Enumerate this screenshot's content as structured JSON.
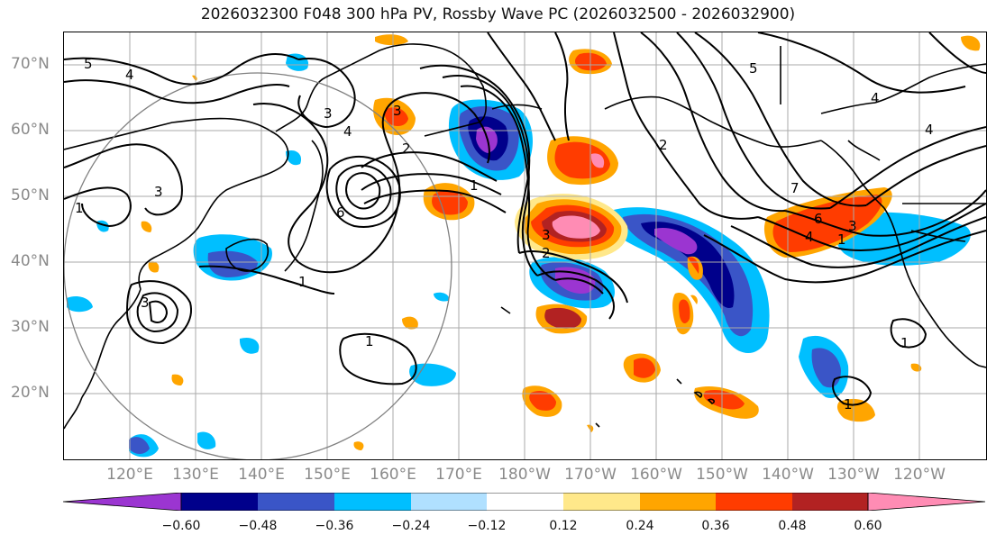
{
  "title": "2026032300 F048 300 hPa PV, Rossby Wave PC (2026032500 - 2026032900)",
  "lat_labels": [
    "70°N",
    "60°N",
    "50°N",
    "40°N",
    "30°N",
    "20°N"
  ],
  "lon_labels": [
    "120°E",
    "130°E",
    "140°E",
    "150°E",
    "160°E",
    "170°E",
    "180°W",
    "170°W",
    "160°W",
    "150°W",
    "140°W",
    "130°W",
    "120°W"
  ],
  "contour_labels": [
    "5",
    "4",
    "4",
    "3",
    "3",
    "6",
    "7",
    "5",
    "4",
    "4",
    "3",
    "3",
    "2",
    "1",
    "1",
    "1",
    "1",
    "1",
    "6",
    "3",
    "2",
    "1",
    "4",
    "3",
    "2",
    "1"
  ],
  "colorbar": {
    "ticks": [
      "−0.60",
      "−0.48",
      "−0.36",
      "−0.24",
      "−0.12",
      "0.12",
      "0.24",
      "0.36",
      "0.48",
      "0.60"
    ],
    "colors": [
      "#9b35d1",
      "#00008b",
      "#3a55c7",
      "#00bfff",
      "#b0e0ff",
      "#ffffff",
      "#ffe88a",
      "#ffa500",
      "#ff3c00",
      "#b22222",
      "#ff8cb4",
      "#ff8cb4"
    ]
  },
  "map_colors": {
    "land_line": "#000000",
    "grid": "#aaaaaa",
    "circle": "#808080",
    "contour": "#000000"
  }
}
